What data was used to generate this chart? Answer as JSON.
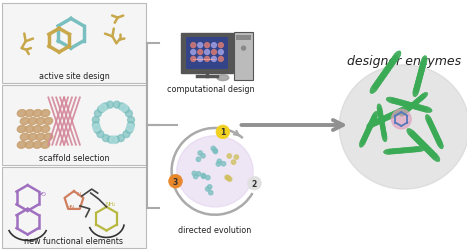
{
  "bg_color": "#ffffff",
  "text_color": "#222222",
  "labels": {
    "active_site": "active site design",
    "scaffold": "scaffold selection",
    "functional": "new functional elements",
    "computational": "computational design",
    "directed": "directed evolution",
    "designer": "designer enzymes"
  },
  "colors": {
    "gold": "#c8a84b",
    "teal": "#7abfbf",
    "salmon": "#e8b0b0",
    "pink": "#d4879a",
    "green": "#2d8a4e",
    "light_green": "#5dc87a",
    "purple": "#a070c0",
    "yellow_green": "#b8b840",
    "orange": "#e8882a",
    "yellow": "#f0d020",
    "light_gray": "#cccccc",
    "lavender": "#ddd0ee",
    "tan": "#c8a070",
    "dark_green": "#1a6030",
    "mid_green": "#3aaa55",
    "box_edge": "#bbbbbb",
    "arrow_gray": "#909090",
    "bracket_gray": "#aaaaaa",
    "monitor_dark": "#555555",
    "monitor_light": "#bbbbbb",
    "screen_bg": "#334488",
    "screen_dots": "#cc7777"
  }
}
